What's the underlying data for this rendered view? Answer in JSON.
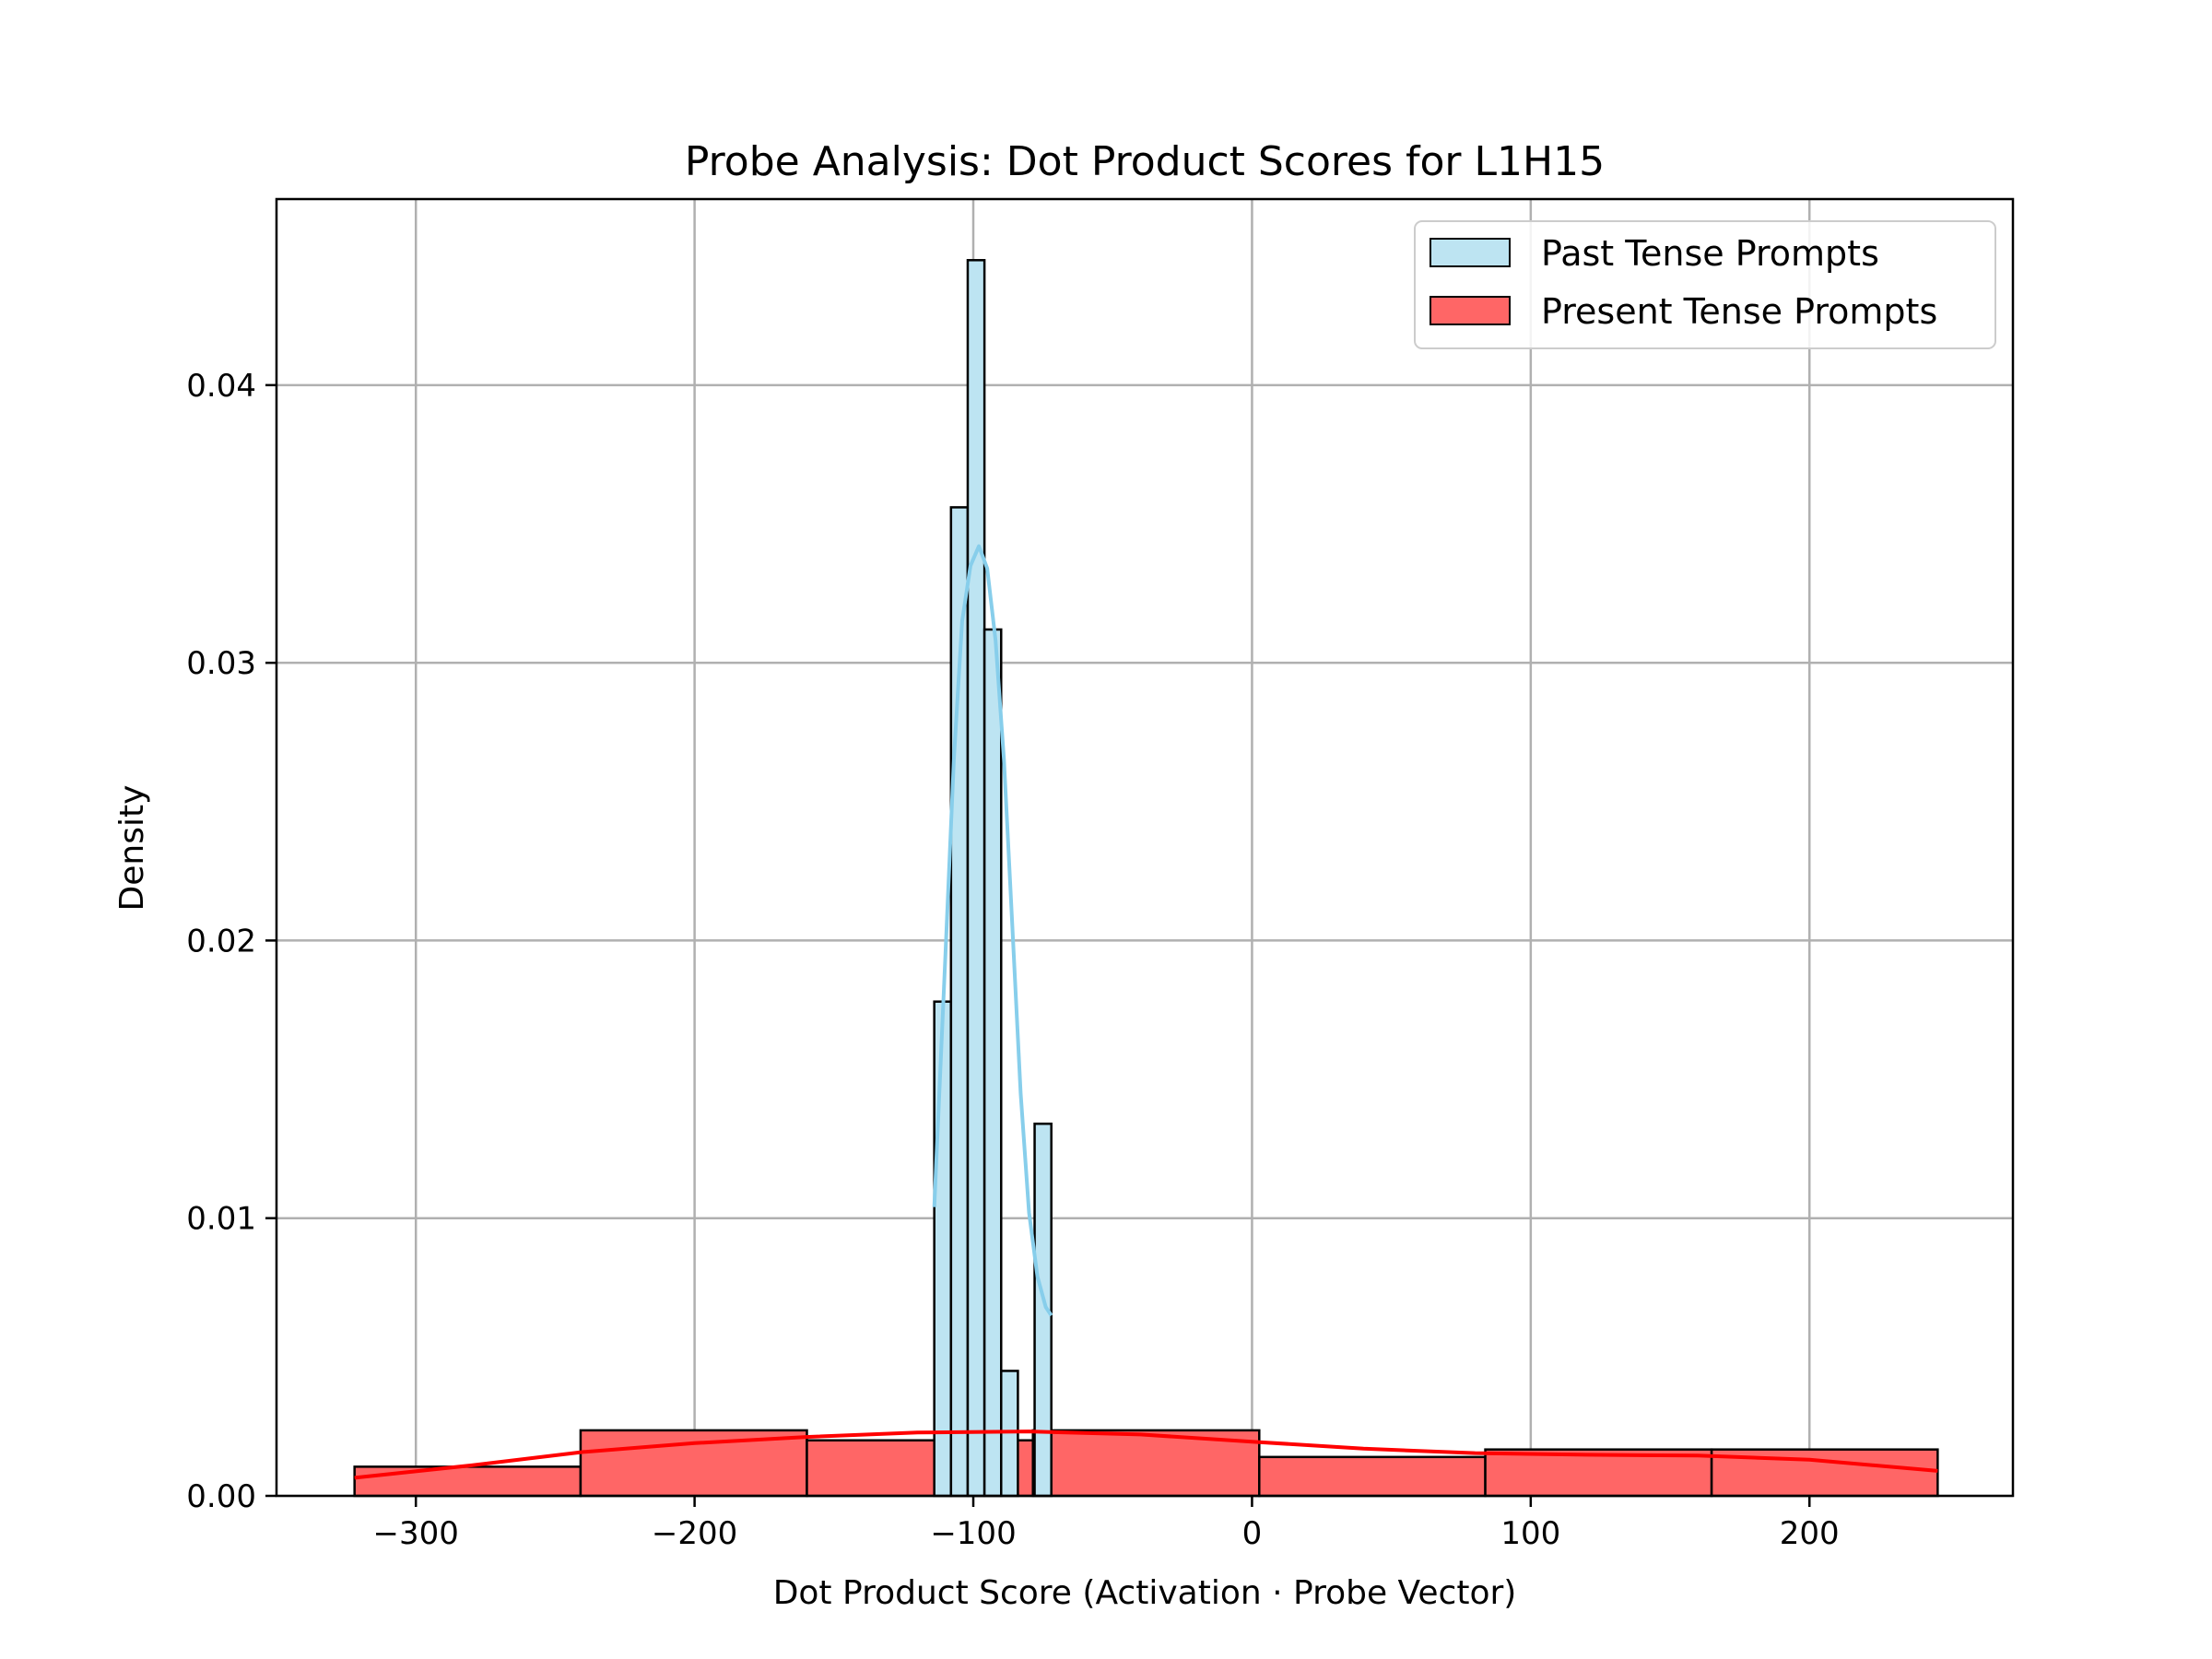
{
  "chart_data": {
    "type": "histogram",
    "title": "Probe Analysis: Dot Product Scores for L1H15",
    "xlabel": "Dot Product Score (Activation · Probe Vector)",
    "ylabel": "Density",
    "xlim": [
      -350,
      273
    ],
    "ylim": [
      0,
      0.0467
    ],
    "xticks": [
      -300,
      -200,
      -100,
      0,
      100,
      200
    ],
    "xtick_labels": [
      "−300",
      "−200",
      "−100",
      "0",
      "100",
      "200"
    ],
    "yticks": [
      0,
      0.01,
      0.02,
      0.03,
      0.04
    ],
    "ytick_labels": [
      "0.00",
      "0.01",
      "0.02",
      "0.03",
      "0.04"
    ],
    "grid": true,
    "legend_position": "top-right",
    "series": [
      {
        "name": "Present Tense Prompts",
        "color": "#ff0000",
        "fill": "#ff6666",
        "bin_edges": [
          -322,
          -240.9,
          -159.7,
          -78.6,
          2.6,
          83.7,
          164.9,
          246
        ],
        "densities": [
          0.00105,
          0.00236,
          0.002,
          0.00236,
          0.0014,
          0.00167,
          0.00167
        ],
        "kde": [
          [
            -322,
            0.00065
          ],
          [
            -280,
            0.0011
          ],
          [
            -240,
            0.00158
          ],
          [
            -200,
            0.0019
          ],
          [
            -160,
            0.00212
          ],
          [
            -120,
            0.00228
          ],
          [
            -80,
            0.00232
          ],
          [
            -40,
            0.00221
          ],
          [
            0,
            0.00195
          ],
          [
            40,
            0.0017
          ],
          [
            80,
            0.00154
          ],
          [
            120,
            0.00148
          ],
          [
            160,
            0.00145
          ],
          [
            200,
            0.0013
          ],
          [
            246,
            0.0009
          ]
        ]
      },
      {
        "name": "Past Tense Prompts",
        "color": "#87ceeb",
        "fill": "#bde4f2",
        "bin_edges": [
          -114,
          -108,
          -102,
          -96,
          -90,
          -84,
          -78,
          -72
        ],
        "densities": [
          0.0178,
          0.0356,
          0.0445,
          0.0312,
          0.0045,
          0.0,
          0.0134
        ],
        "kde": [
          [
            -114,
            0.0104
          ],
          [
            -110,
            0.0195
          ],
          [
            -107,
            0.0265
          ],
          [
            -104,
            0.0315
          ],
          [
            -101,
            0.0335
          ],
          [
            -98,
            0.0342
          ],
          [
            -95,
            0.0334
          ],
          [
            -92,
            0.0308
          ],
          [
            -89,
            0.0265
          ],
          [
            -86,
            0.0205
          ],
          [
            -83,
            0.0145
          ],
          [
            -80,
            0.0102
          ],
          [
            -77,
            0.0079
          ],
          [
            -74,
            0.0068
          ],
          [
            -72,
            0.0065
          ]
        ]
      }
    ]
  }
}
